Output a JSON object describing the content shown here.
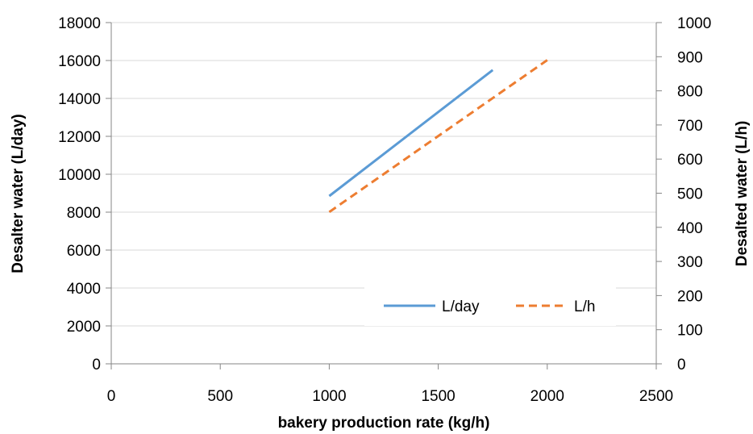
{
  "chart_data": {
    "type": "line",
    "title": "",
    "xlabel": "bakery production rate (kg/h)",
    "ylabel": "Desalter water (L/day)",
    "y2label": "Desalted water (L/h)",
    "xlim": [
      0,
      2500
    ],
    "ylim": [
      0,
      18000
    ],
    "y2lim": [
      0,
      1000
    ],
    "x_ticks": [
      "0",
      "500",
      "1000",
      "1500",
      "2000",
      "2500"
    ],
    "y_ticks": [
      "0",
      "2000",
      "4000",
      "6000",
      "8000",
      "10000",
      "12000",
      "14000",
      "16000",
      "18000"
    ],
    "y2_ticks": [
      "0",
      "100",
      "200",
      "300",
      "400",
      "500",
      "600",
      "700",
      "800",
      "900",
      "1000"
    ],
    "grid": "horizontal",
    "legend_position": "bottom-right",
    "series": [
      {
        "name": "L/day",
        "axis": "left",
        "style": "solid",
        "color": "#5B9BD5",
        "x": [
          1000,
          1750
        ],
        "y": [
          8850,
          15500
        ]
      },
      {
        "name": "L/h",
        "axis": "right",
        "style": "dashed",
        "color": "#ED7D31",
        "x": [
          1000,
          2000
        ],
        "y": [
          445,
          890
        ]
      }
    ]
  }
}
